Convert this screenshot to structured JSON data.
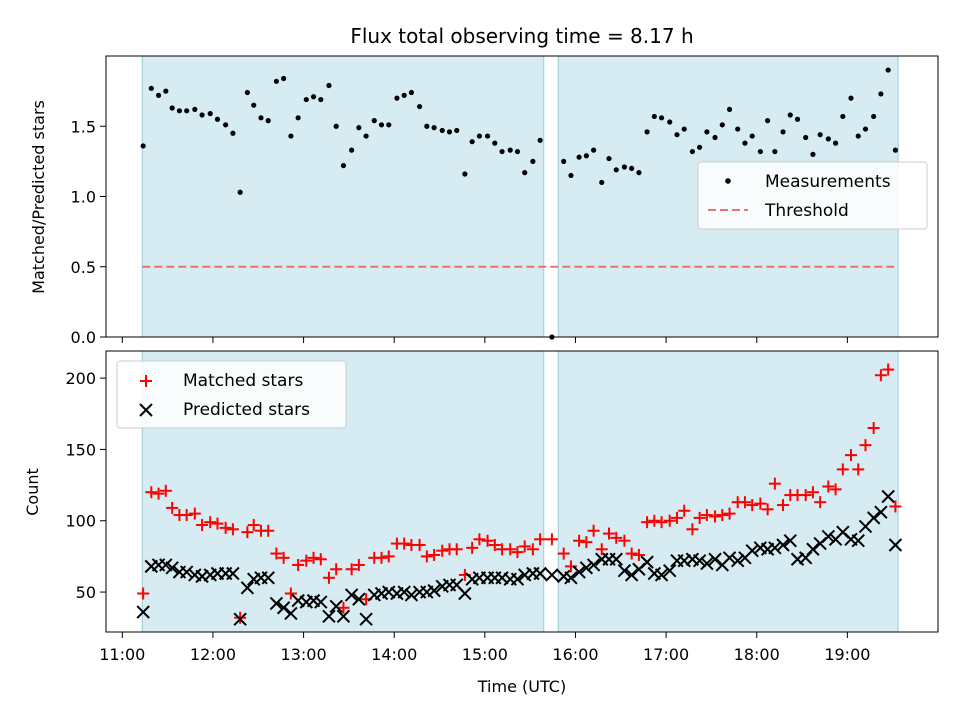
{
  "title": "Flux total observing time = 8.17 h",
  "chart_data": [
    {
      "type": "scatter",
      "ylabel": "Matched/Predicted stars",
      "ylim": [
        0,
        2.0
      ],
      "yticks": [
        0.0,
        0.5,
        1.0,
        1.5
      ],
      "ytick_labels": [
        "0.0",
        "0.5",
        "1.0",
        "1.5"
      ],
      "xlim_hours": [
        10.82,
        20.0
      ],
      "xticks_hours": [
        11,
        12,
        13,
        14,
        15,
        16,
        17,
        18,
        19
      ],
      "shaded_spans_hours": [
        [
          11.22,
          15.65
        ],
        [
          15.81,
          19.56
        ]
      ],
      "legend": "center-right",
      "series": [
        {
          "name": "Measurements",
          "marker": "dot",
          "color": "#000000",
          "x_hours": [
            11.23,
            11.32,
            11.4,
            11.48,
            11.55,
            11.63,
            11.71,
            11.8,
            11.88,
            11.97,
            12.05,
            12.14,
            12.22,
            12.3,
            12.38,
            12.45,
            12.53,
            12.61,
            12.7,
            12.78,
            12.86,
            12.94,
            13.03,
            13.11,
            13.19,
            13.28,
            13.36,
            13.44,
            13.53,
            13.61,
            13.69,
            13.78,
            13.86,
            13.94,
            14.03,
            14.11,
            14.19,
            14.28,
            14.36,
            14.44,
            14.53,
            14.61,
            14.69,
            14.78,
            14.86,
            14.94,
            15.03,
            15.11,
            15.19,
            15.28,
            15.36,
            15.44,
            15.53,
            15.61,
            15.74,
            15.87,
            15.95,
            16.04,
            16.12,
            16.2,
            16.29,
            16.37,
            16.45,
            16.54,
            16.62,
            16.7,
            16.79,
            16.87,
            16.95,
            17.04,
            17.12,
            17.2,
            17.29,
            17.37,
            17.45,
            17.54,
            17.62,
            17.7,
            17.79,
            17.87,
            17.95,
            18.04,
            18.12,
            18.2,
            18.29,
            18.37,
            18.45,
            18.54,
            18.62,
            18.7,
            18.79,
            18.87,
            18.95,
            19.04,
            19.12,
            19.2,
            19.29,
            19.37,
            19.45,
            19.53
          ],
          "y": [
            1.36,
            1.77,
            1.72,
            1.75,
            1.63,
            1.61,
            1.61,
            1.62,
            1.58,
            1.59,
            1.55,
            1.51,
            1.45,
            1.03,
            1.74,
            1.65,
            1.56,
            1.54,
            1.82,
            1.84,
            1.43,
            1.56,
            1.69,
            1.71,
            1.69,
            1.79,
            1.5,
            1.22,
            1.33,
            1.49,
            1.43,
            1.54,
            1.51,
            1.51,
            1.7,
            1.72,
            1.74,
            1.64,
            1.5,
            1.49,
            1.47,
            1.46,
            1.47,
            1.16,
            1.39,
            1.43,
            1.43,
            1.38,
            1.32,
            1.33,
            1.32,
            1.17,
            1.25,
            1.4,
            0.0,
            1.25,
            1.15,
            1.28,
            1.29,
            1.33,
            1.1,
            1.27,
            1.19,
            1.21,
            1.2,
            1.17,
            1.46,
            1.57,
            1.56,
            1.53,
            1.44,
            1.48,
            1.32,
            1.35,
            1.46,
            1.42,
            1.51,
            1.62,
            1.48,
            1.38,
            1.43,
            1.32,
            1.54,
            1.32,
            1.46,
            1.58,
            1.55,
            1.42,
            1.3,
            1.44,
            1.41,
            1.38,
            1.57,
            1.7,
            1.43,
            1.48,
            1.57,
            1.73,
            1.9,
            1.33
          ]
        },
        {
          "name": "Threshold",
          "style": "dashed",
          "color": "#f07070",
          "x_hours": [
            11.22,
            19.56
          ],
          "y": [
            0.5,
            0.5
          ]
        }
      ]
    },
    {
      "type": "scatter",
      "xlabel": "Time (UTC)",
      "ylabel": "Count",
      "ylim": [
        22,
        219
      ],
      "yticks": [
        50,
        100,
        150,
        200
      ],
      "ytick_labels": [
        "50",
        "100",
        "150",
        "200"
      ],
      "xlim_hours": [
        10.82,
        20.0
      ],
      "xticks_hours": [
        11,
        12,
        13,
        14,
        15,
        16,
        17,
        18,
        19
      ],
      "xtick_labels": [
        "11:00",
        "12:00",
        "13:00",
        "14:00",
        "15:00",
        "16:00",
        "17:00",
        "18:00",
        "19:00"
      ],
      "shaded_spans_hours": [
        [
          11.22,
          15.65
        ],
        [
          15.81,
          19.56
        ]
      ],
      "legend": "top-left",
      "series": [
        {
          "name": "Matched stars",
          "marker": "plus",
          "color": "#ff0000",
          "x_hours": [
            11.23,
            11.32,
            11.4,
            11.48,
            11.55,
            11.63,
            11.71,
            11.8,
            11.88,
            11.97,
            12.05,
            12.14,
            12.22,
            12.3,
            12.38,
            12.45,
            12.53,
            12.61,
            12.7,
            12.78,
            12.86,
            12.94,
            13.03,
            13.11,
            13.19,
            13.28,
            13.36,
            13.44,
            13.53,
            13.61,
            13.69,
            13.78,
            13.86,
            13.94,
            14.03,
            14.11,
            14.19,
            14.28,
            14.36,
            14.44,
            14.53,
            14.61,
            14.69,
            14.78,
            14.86,
            14.94,
            15.03,
            15.11,
            15.19,
            15.28,
            15.36,
            15.44,
            15.53,
            15.61,
            15.74,
            15.87,
            15.95,
            16.04,
            16.12,
            16.2,
            16.29,
            16.37,
            16.45,
            16.54,
            16.62,
            16.7,
            16.79,
            16.87,
            16.95,
            17.04,
            17.12,
            17.2,
            17.29,
            17.37,
            17.45,
            17.54,
            17.62,
            17.7,
            17.79,
            17.87,
            17.95,
            18.04,
            18.12,
            18.2,
            18.29,
            18.37,
            18.45,
            18.54,
            18.62,
            18.7,
            18.79,
            18.87,
            18.95,
            19.04,
            19.12,
            19.2,
            19.29,
            19.37,
            19.45,
            19.53
          ],
          "y": [
            49,
            120,
            119,
            121,
            109,
            104,
            104,
            105,
            97,
            99,
            98,
            95,
            94,
            32,
            92,
            97,
            93,
            93,
            77,
            74,
            49,
            69,
            72,
            74,
            73,
            60,
            66,
            39,
            66,
            69,
            45,
            74,
            74,
            75,
            84,
            84,
            83,
            83,
            75,
            76,
            79,
            80,
            80,
            62,
            81,
            87,
            86,
            83,
            80,
            80,
            78,
            82,
            80,
            87,
            87,
            77,
            68,
            86,
            85,
            93,
            80,
            91,
            88,
            86,
            77,
            76,
            99,
            100,
            99,
            100,
            102,
            107,
            94,
            102,
            104,
            103,
            104,
            105,
            113,
            113,
            111,
            112,
            108,
            126,
            111,
            118,
            118,
            118,
            120,
            113,
            124,
            122,
            136,
            146,
            136,
            153,
            165,
            202,
            206,
            110
          ]
        },
        {
          "name": "Predicted stars",
          "marker": "x",
          "color": "#000000",
          "x_hours": [
            11.23,
            11.32,
            11.4,
            11.48,
            11.55,
            11.63,
            11.71,
            11.8,
            11.88,
            11.97,
            12.05,
            12.14,
            12.22,
            12.3,
            12.38,
            12.45,
            12.53,
            12.61,
            12.7,
            12.78,
            12.86,
            12.94,
            13.03,
            13.11,
            13.19,
            13.28,
            13.36,
            13.44,
            13.53,
            13.61,
            13.69,
            13.78,
            13.86,
            13.94,
            14.03,
            14.11,
            14.19,
            14.28,
            14.36,
            14.44,
            14.53,
            14.61,
            14.69,
            14.78,
            14.86,
            14.94,
            15.03,
            15.11,
            15.19,
            15.28,
            15.36,
            15.44,
            15.53,
            15.61,
            15.74,
            15.87,
            15.95,
            16.04,
            16.12,
            16.2,
            16.29,
            16.37,
            16.45,
            16.54,
            16.62,
            16.7,
            16.79,
            16.87,
            16.95,
            17.04,
            17.12,
            17.2,
            17.29,
            17.37,
            17.45,
            17.54,
            17.62,
            17.7,
            17.79,
            17.87,
            17.95,
            18.04,
            18.12,
            18.2,
            18.29,
            18.37,
            18.45,
            18.54,
            18.62,
            18.7,
            18.79,
            18.87,
            18.95,
            19.04,
            19.12,
            19.2,
            19.29,
            19.37,
            19.45,
            19.53
          ],
          "y": [
            36,
            68,
            69,
            69,
            67,
            64,
            64,
            62,
            61,
            62,
            63,
            63,
            63,
            31,
            53,
            59,
            60,
            60,
            42,
            39,
            35,
            44,
            43,
            44,
            43,
            33,
            40,
            33,
            48,
            45,
            31,
            48,
            49,
            50,
            49,
            50,
            48,
            50,
            50,
            51,
            54,
            55,
            55,
            49,
            59,
            60,
            60,
            60,
            60,
            59,
            59,
            62,
            63,
            63,
            62,
            61,
            60,
            64,
            67,
            69,
            73,
            73,
            73,
            65,
            62,
            66,
            71,
            63,
            62,
            65,
            72,
            72,
            73,
            72,
            70,
            73,
            69,
            74,
            72,
            74,
            79,
            81,
            80,
            81,
            83,
            86,
            73,
            74,
            80,
            84,
            89,
            87,
            92,
            87,
            86,
            96,
            102,
            106,
            117,
            83
          ]
        }
      ]
    }
  ]
}
